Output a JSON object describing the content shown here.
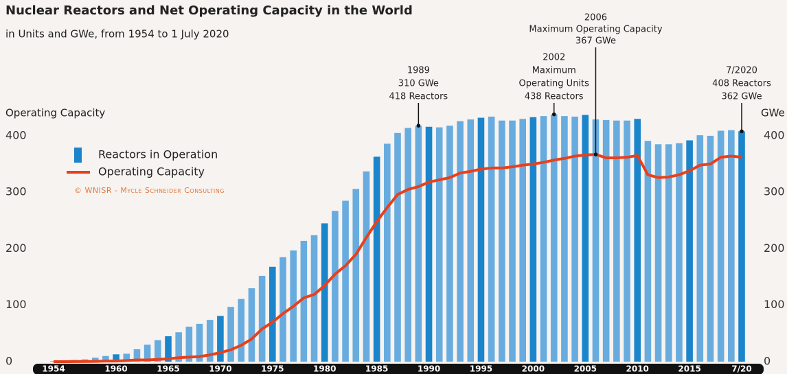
{
  "chart_data": {
    "type": "bar",
    "title": "Nuclear Reactors and Net Operating Capacity in the World",
    "subtitle": "in Units and GWe, from 1954 to 1 July 2020",
    "y_label": "Operating Capacity",
    "y2_label": "GWe",
    "credit": "© WNISR - Mycle Schneider Consulting",
    "x": [
      1954,
      1955,
      1956,
      1957,
      1958,
      1959,
      1960,
      1961,
      1962,
      1963,
      1964,
      1965,
      1966,
      1967,
      1968,
      1969,
      1970,
      1971,
      1972,
      1973,
      1974,
      1975,
      1976,
      1977,
      1978,
      1979,
      1980,
      1981,
      1982,
      1983,
      1984,
      1985,
      1986,
      1987,
      1988,
      1989,
      1990,
      1991,
      1992,
      1993,
      1994,
      1995,
      1996,
      1997,
      1998,
      1999,
      2000,
      2001,
      2002,
      2003,
      2004,
      2005,
      2006,
      2007,
      2008,
      2009,
      2010,
      2011,
      2012,
      2013,
      2014,
      2015,
      2016,
      2017,
      2018,
      2019,
      2020
    ],
    "xlim": [
      1953,
      2021
    ],
    "xticks": [
      1954,
      1960,
      1965,
      1970,
      1975,
      1980,
      1985,
      1990,
      1995,
      2000,
      2005,
      2010,
      2015,
      {
        "value": 2020,
        "label": "7/20"
      }
    ],
    "ylim": [
      0,
      440
    ],
    "yticks": [
      0,
      100,
      200,
      300,
      400
    ],
    "y2lim": [
      0,
      440
    ],
    "y2ticks": [
      0,
      100,
      200,
      300,
      400
    ],
    "series": [
      {
        "name": "Reactors in Operation",
        "type": "bar",
        "color": "#1b85cb",
        "colors": [
          "#68acdf",
          "#68acdf",
          "#68acdf",
          "#68acdf",
          "#68acdf",
          "#68acdf",
          "#1b85cb",
          "#68acdf",
          "#68acdf",
          "#68acdf",
          "#68acdf",
          "#1b85cb",
          "#68acdf",
          "#68acdf",
          "#68acdf",
          "#68acdf",
          "#1b85cb",
          "#68acdf",
          "#68acdf",
          "#68acdf",
          "#68acdf",
          "#1b85cb",
          "#68acdf",
          "#68acdf",
          "#68acdf",
          "#68acdf",
          "#1b85cb",
          "#68acdf",
          "#68acdf",
          "#68acdf",
          "#68acdf",
          "#1b85cb",
          "#68acdf",
          "#68acdf",
          "#68acdf",
          "#68acdf",
          "#1b85cb",
          "#68acdf",
          "#68acdf",
          "#68acdf",
          "#68acdf",
          "#1b85cb",
          "#68acdf",
          "#68acdf",
          "#68acdf",
          "#68acdf",
          "#1b85cb",
          "#68acdf",
          "#68acdf",
          "#68acdf",
          "#68acdf",
          "#1b85cb",
          "#68acdf",
          "#68acdf",
          "#68acdf",
          "#68acdf",
          "#1b85cb",
          "#68acdf",
          "#68acdf",
          "#68acdf",
          "#68acdf",
          "#1b85cb",
          "#68acdf",
          "#68acdf",
          "#68acdf",
          "#68acdf",
          "#1b85cb"
        ],
        "values": [
          1,
          1,
          3,
          4,
          7,
          10,
          13,
          14,
          22,
          30,
          38,
          45,
          52,
          62,
          67,
          74,
          81,
          97,
          111,
          130,
          152,
          168,
          185,
          197,
          214,
          224,
          245,
          267,
          285,
          306,
          337,
          363,
          386,
          405,
          414,
          418,
          416,
          415,
          418,
          426,
          429,
          432,
          434,
          427,
          427,
          430,
          433,
          435,
          438,
          435,
          434,
          437,
          429,
          428,
          427,
          427,
          430,
          391,
          385,
          385,
          387,
          392,
          401,
          400,
          409,
          410,
          408
        ]
      },
      {
        "name": "Operating Capacity",
        "type": "line",
        "color": "#e8401c",
        "axis": "y2",
        "values": [
          0,
          0,
          0.1,
          0.3,
          0.5,
          1,
          1,
          2,
          3,
          3,
          4,
          5,
          7,
          8,
          9,
          12,
          16,
          21,
          29,
          40,
          58,
          70,
          85,
          98,
          113,
          119,
          135,
          155,
          170,
          190,
          220,
          248,
          273,
          296,
          305,
          310,
          318,
          322,
          326,
          334,
          337,
          341,
          343,
          343,
          345,
          348,
          350,
          353,
          357,
          360,
          364,
          366,
          367,
          361,
          361,
          362,
          365,
          331,
          326,
          327,
          331,
          338,
          348,
          350,
          362,
          364,
          362
        ]
      }
    ],
    "annotations": [
      {
        "x": 1989,
        "lines": [
          "1989",
          "310 GWe",
          "418 Reactors"
        ]
      },
      {
        "x": 2002,
        "lines": [
          "2002",
          "Maximum",
          "Operating Units",
          "438 Reactors"
        ]
      },
      {
        "x": 2006,
        "lines": [
          "2006",
          "Maximum Operating Capacity",
          "367 GWe"
        ],
        "axis": "y2"
      },
      {
        "x": 2020,
        "lines": [
          "7/2020",
          "408 Reactors",
          "362 GWe"
        ]
      }
    ]
  }
}
